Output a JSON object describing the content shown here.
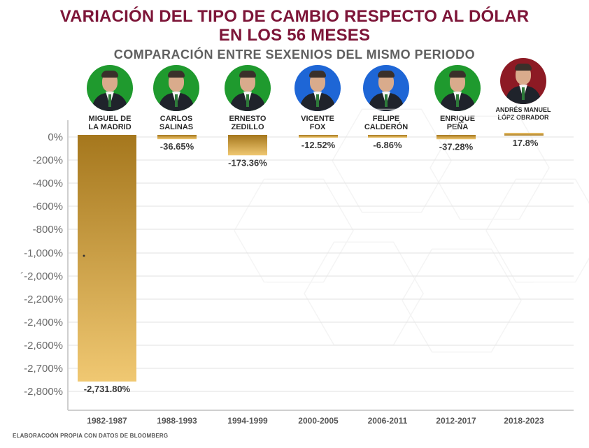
{
  "title_line1": "VARIACIÓN DEL TIPO DE CAMBIO RESPECTO AL DÓLAR",
  "title_line2": "EN LOS 56 MESES",
  "subtitle": "COMPARACIÓN ENTRE SEXENIOS DEL MISMO PERIODO",
  "footer": "ELABORACOÓN PROPIA CON DATOS DE BLOOMBERG",
  "colors": {
    "title": "#7d1538",
    "bar_dark": "#a5771d",
    "bar_light": "#f0c872",
    "avatar_green": "#1f9a2e",
    "avatar_blue": "#1e66d6",
    "avatar_maroon": "#8d1a24"
  },
  "chart_data": {
    "type": "bar",
    "categories": [
      "1982-1987",
      "1988-1993",
      "1994-1999",
      "2000-2005",
      "2006-2011",
      "2012-2017",
      "2018-2023"
    ],
    "presidents": [
      {
        "name": "MIGUEL DE LA MADRID",
        "lines": [
          "MIGUEL DE",
          "LA MADRID"
        ],
        "avatar_color": "green"
      },
      {
        "name": "CARLOS SALINAS",
        "lines": [
          "CARLOS",
          "SALINAS"
        ],
        "avatar_color": "green"
      },
      {
        "name": "ERNESTO ZEDILLO",
        "lines": [
          "ERNESTO",
          "ZEDILLO"
        ],
        "avatar_color": "green"
      },
      {
        "name": "VICENTE FOX",
        "lines": [
          "VICENTE",
          "FOX"
        ],
        "avatar_color": "blue"
      },
      {
        "name": "FELIPE CALDERÓN",
        "lines": [
          "FELIPE",
          "CALDERÓN"
        ],
        "avatar_color": "blue"
      },
      {
        "name": "ENRIQUE PEÑA",
        "lines": [
          "ENRIQUE",
          "PEÑA"
        ],
        "avatar_color": "green"
      },
      {
        "name": "ANDRÉS MANUEL LÓPZ OBRADOR",
        "lines": [
          "ANDRÉS MANUEL",
          "LÓPZ OBRADOR"
        ],
        "avatar_color": "maroon"
      }
    ],
    "values": [
      -2731.8,
      -36.65,
      -173.36,
      -12.52,
      -6.86,
      -37.28,
      17.8
    ],
    "value_labels": [
      "-2,731.80%",
      "-36.65%",
      "-173.36%",
      "-12.52%",
      "-6.86%",
      "-37.28%",
      "17.8%"
    ],
    "y_tick_labels": [
      "0%",
      "-200%",
      "-400%",
      "-600%",
      "-800%",
      "-1,000%",
      "´-2,000%",
      "-2,200%",
      "-2,400%",
      "-2,600%",
      "-2,700%",
      "-2,800%"
    ],
    "y_scale": "piecewise",
    "grid": true,
    "legend": "none"
  }
}
